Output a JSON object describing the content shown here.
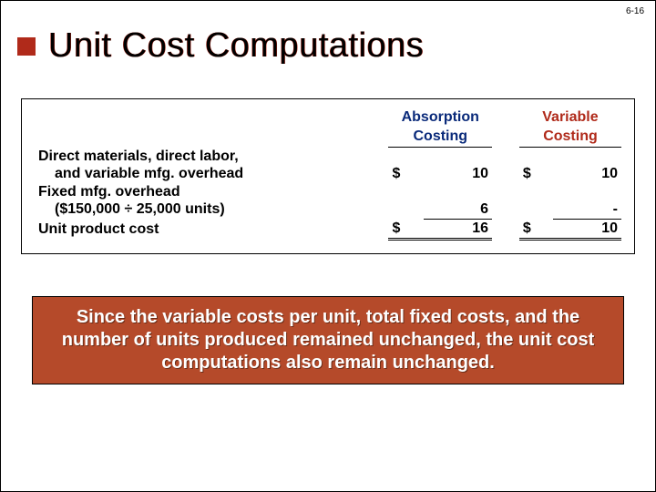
{
  "page_number": "6-16",
  "title": "Unit Cost Computations",
  "table": {
    "headers": {
      "absorption_line1": "Absorption",
      "absorption_line2": "Costing",
      "variable_line1": "Variable",
      "variable_line2": "Costing"
    },
    "rows": {
      "direct_line1": "Direct materials, direct labor,",
      "direct_line2": "and variable mfg. overhead",
      "fixed_line1": "Fixed mfg. overhead",
      "fixed_line2": "($150,000 ÷ 25,000 units)",
      "unit_cost": "Unit product cost"
    },
    "values": {
      "direct_abs_sym": "$",
      "direct_abs_val": "10",
      "direct_var_sym": "$",
      "direct_var_val": "10",
      "fixed_abs_val": "6",
      "fixed_var_val": "-",
      "total_abs_sym": "$",
      "total_abs_val": "16",
      "total_var_sym": "$",
      "total_var_val": "10"
    },
    "colors": {
      "absorption_header": "#0a2a7a",
      "variable_header": "#b02a1a"
    }
  },
  "callout": "Since the variable costs per unit, total fixed costs, and the number of units produced remained unchanged, the unit cost computations also remain unchanged.",
  "colors": {
    "accent_red": "#b02a1a",
    "callout_bg": "#b54a2a",
    "callout_text": "#ffffff"
  }
}
